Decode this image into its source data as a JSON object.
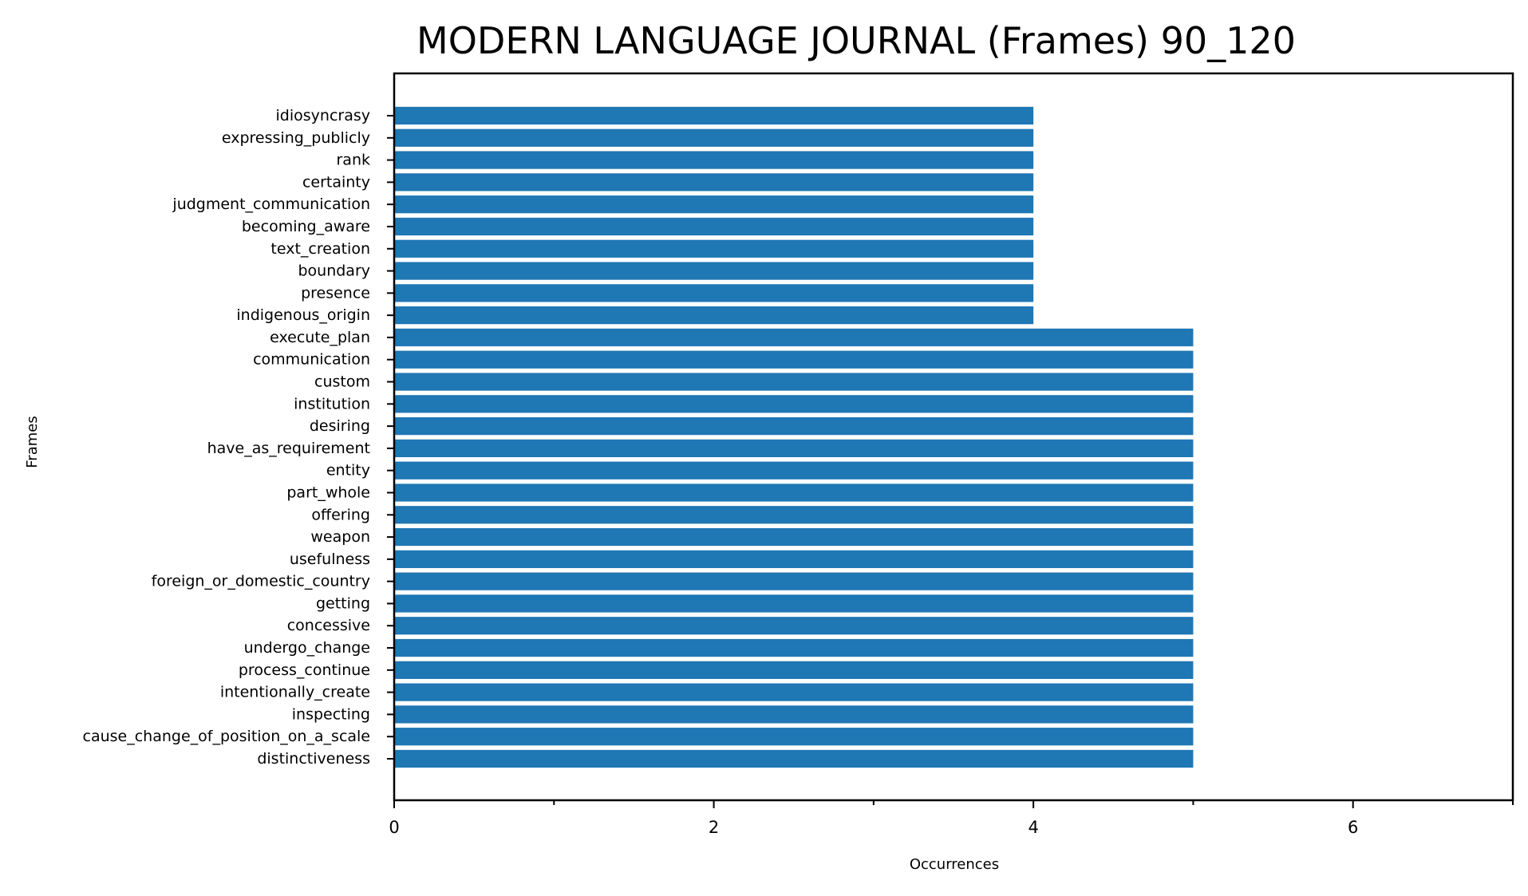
{
  "chart_data": {
    "type": "bar",
    "orientation": "horizontal",
    "title": "MODERN LANGUAGE JOURNAL (Frames) 90_120",
    "xlabel": "Occurrences",
    "ylabel": "Frames",
    "xlim": [
      0,
      7
    ],
    "xticks": [
      0,
      2,
      4,
      6
    ],
    "x_minor_ticks": [
      1,
      3,
      5,
      7
    ],
    "grid": false,
    "bar_color": "#1f77b4",
    "categories": [
      "idiosyncrasy",
      "expressing_publicly",
      "rank",
      "certainty",
      "judgment_communication",
      "becoming_aware",
      "text_creation",
      "boundary",
      "presence",
      "indigenous_origin",
      "execute_plan",
      "communication",
      "custom",
      "institution",
      "desiring",
      "have_as_requirement",
      "entity",
      "part_whole",
      "offering",
      "weapon",
      "usefulness",
      "foreign_or_domestic_country",
      "getting",
      "concessive",
      "undergo_change",
      "process_continue",
      "intentionally_create",
      "inspecting",
      "cause_change_of_position_on_a_scale",
      "distinctiveness"
    ],
    "values": [
      4,
      4,
      4,
      4,
      4,
      4,
      4,
      4,
      4,
      4,
      5,
      5,
      5,
      5,
      5,
      5,
      5,
      5,
      5,
      5,
      5,
      5,
      5,
      5,
      5,
      5,
      5,
      5,
      5,
      5
    ]
  }
}
